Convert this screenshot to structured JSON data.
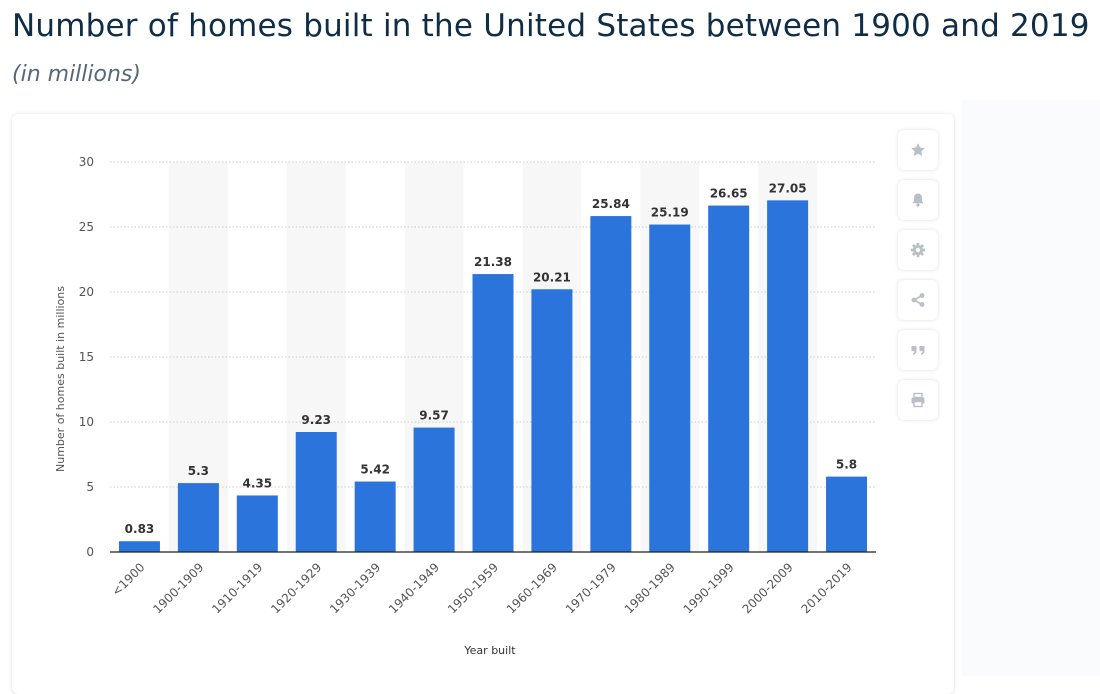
{
  "header": {
    "title": "Number of homes built in the United States between 1900 and 2019",
    "subtitle": "(in millions)"
  },
  "toolbar": {
    "buttons": [
      {
        "icon": "star-icon"
      },
      {
        "icon": "bell-icon"
      },
      {
        "icon": "gear-icon"
      },
      {
        "icon": "share-icon"
      },
      {
        "icon": "quote-icon"
      },
      {
        "icon": "print-icon"
      }
    ]
  },
  "colors": {
    "bar": "#2a74dc",
    "band": "#f7f7f8",
    "grid": "#c9ccd0",
    "axis": "#222222",
    "tick_text": "#555555",
    "label_text": "#333333",
    "icon": "#b8bfc7"
  },
  "chart_data": {
    "type": "bar",
    "title": "",
    "xlabel": "Year built",
    "ylabel": "Number of homes built in millions",
    "ylim": [
      0,
      30
    ],
    "yticks": [
      0,
      5,
      10,
      15,
      20,
      25,
      30
    ],
    "grid": true,
    "categories": [
      "<1900",
      "1900-1909",
      "1910-1919",
      "1920-1929",
      "1930-1939",
      "1940-1949",
      "1950-1959",
      "1960-1969",
      "1970-1979",
      "1980-1989",
      "1990-1999",
      "2000-2009",
      "2010-2019"
    ],
    "values": [
      0.83,
      5.3,
      4.35,
      9.23,
      5.42,
      9.57,
      21.38,
      20.21,
      25.84,
      25.19,
      26.65,
      27.05,
      5.8
    ],
    "value_labels": [
      "0.83",
      "5.3",
      "4.35",
      "9.23",
      "5.42",
      "9.57",
      "21.38",
      "20.21",
      "25.84",
      "25.19",
      "26.65",
      "27.05",
      "5.8"
    ]
  }
}
